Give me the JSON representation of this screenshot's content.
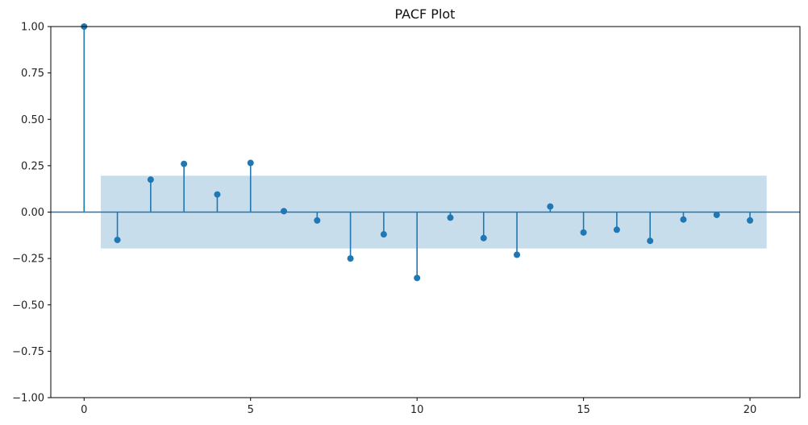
{
  "chart_data": {
    "type": "scatter",
    "title": "PACF Plot",
    "xlabel": "",
    "ylabel": "",
    "xlim": [
      -1,
      21.5
    ],
    "ylim": [
      -1.0,
      1.0
    ],
    "x_ticks": [
      0,
      5,
      10,
      15,
      20
    ],
    "x_tick_labels": [
      "0",
      "5",
      "10",
      "15",
      "20"
    ],
    "y_ticks": [
      -1.0,
      -0.75,
      -0.5,
      -0.25,
      0.0,
      0.25,
      0.5,
      0.75,
      1.0
    ],
    "y_tick_labels": [
      "−1.00",
      "−0.75",
      "−0.50",
      "−0.25",
      "0.00",
      "0.25",
      "0.50",
      "0.75",
      "1.00"
    ],
    "confidence_band": {
      "x_range": [
        0.5,
        20.5
      ],
      "y_range": [
        -0.196,
        0.196
      ]
    },
    "series": [
      {
        "x": [
          0,
          1,
          2,
          3,
          4,
          5,
          6,
          7,
          8,
          9,
          10,
          11,
          12,
          13,
          14,
          15,
          16,
          17,
          18,
          19,
          20
        ],
        "values": [
          1.0,
          -0.15,
          0.175,
          0.26,
          0.095,
          0.265,
          0.005,
          -0.045,
          -0.25,
          -0.12,
          -0.355,
          -0.03,
          -0.14,
          -0.23,
          0.03,
          -0.11,
          -0.095,
          -0.155,
          -0.04,
          -0.015,
          -0.045
        ]
      }
    ],
    "grid": false,
    "colors": {
      "marker": "#1f77b4",
      "band": "#1f77b4",
      "band_opacity": 0.25
    }
  }
}
